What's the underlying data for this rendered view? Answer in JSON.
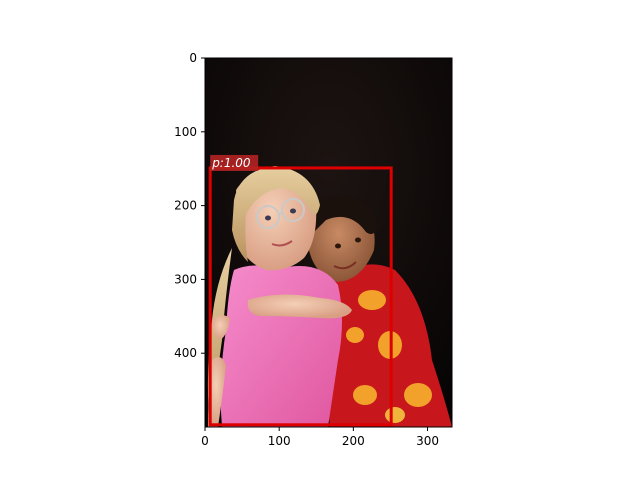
{
  "image": {
    "description_free": true,
    "width_units": 333,
    "height_units": 500
  },
  "axes": {
    "xticks": [
      0,
      100,
      200,
      300
    ],
    "yticks": [
      0,
      100,
      200,
      300,
      400
    ]
  },
  "detections": [
    {
      "label": "p:1.00",
      "box": {
        "x0": 7,
        "y0": 149,
        "x1": 251,
        "y1": 497
      },
      "color": "#dd0000",
      "label_bg": "#b22222"
    }
  ],
  "colors": {
    "background": "#0d0a09",
    "pink_dress": "#f06bb8",
    "red_shirt": "#c8161d",
    "flower_yellow": "#f2a22a"
  }
}
